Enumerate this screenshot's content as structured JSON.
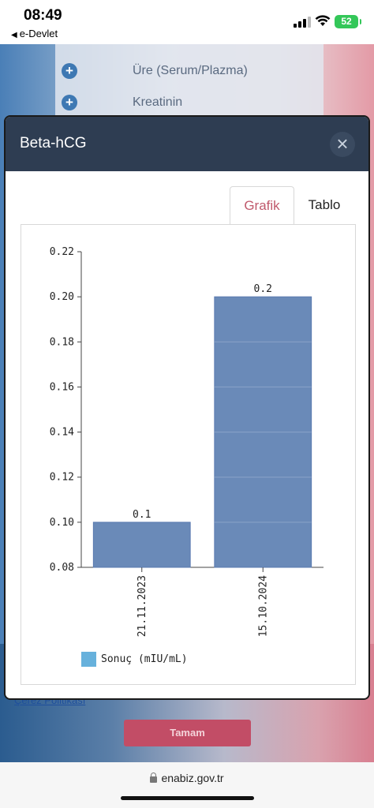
{
  "status_bar": {
    "time": "08:49",
    "back_app": "e-Devlet",
    "battery": "52"
  },
  "background": {
    "list_items": [
      {
        "label": "Üre (Serum/Plazma)"
      },
      {
        "label": "Kreatinin"
      }
    ],
    "policy_link": "Çerez Politikası",
    "ok_button": "Tamam"
  },
  "modal": {
    "title": "Beta-hCG",
    "close_icon": "close-icon",
    "tabs": [
      {
        "label": "Grafik",
        "active": true
      },
      {
        "label": "Tablo",
        "active": false
      }
    ]
  },
  "chart_data": {
    "type": "bar",
    "categories": [
      "21.11.2023",
      "15.10.2024"
    ],
    "series": [
      {
        "name": "Sonuç (mIU/mL)",
        "values": [
          0.1,
          0.2
        ],
        "data_labels": [
          "0.1",
          "0.2"
        ],
        "color": "#67b1dc"
      }
    ],
    "ylim": [
      0.08,
      0.22
    ],
    "yticks": [
      "0.08",
      "0.10",
      "0.12",
      "0.14",
      "0.16",
      "0.18",
      "0.20",
      "0.22"
    ],
    "bar_fill": "#6a8ab8",
    "grid": false,
    "legend": "bottom-left"
  },
  "url_bar": {
    "url": "enabiz.gov.tr"
  }
}
